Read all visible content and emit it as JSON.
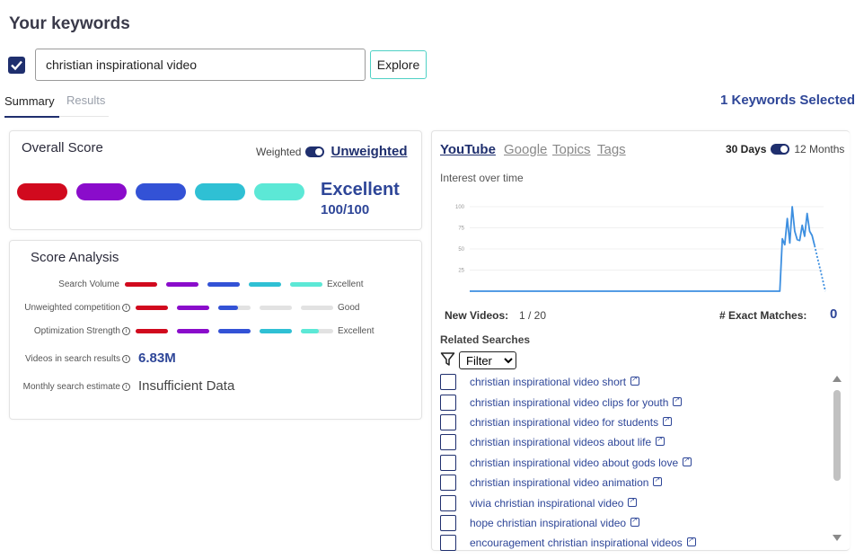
{
  "page": {
    "title": "Your keywords"
  },
  "keyword": {
    "value": "christian inspirational video",
    "checked": true,
    "explore_label": "Explore"
  },
  "tabs": [
    "Summary",
    "Results"
  ],
  "keywords_selected": "1 Keywords Selected",
  "overall": {
    "title": "Overall Score",
    "weighted_label": "Weighted",
    "unweighted_label": "Unweighted",
    "colors": [
      "#d10a1e",
      "#8a0ccb",
      "#3352d6",
      "#2fc0d4",
      "#5ce8d6"
    ],
    "rating": "Excellent",
    "score": "100/100"
  },
  "analysis": {
    "title": "Score Analysis",
    "rows": [
      {
        "label": "Search Volume",
        "info": false,
        "verdict": "Excellent",
        "fills": [
          1,
          1,
          1,
          1,
          1
        ]
      },
      {
        "label": "Unweighted competition",
        "info": true,
        "verdict": "Good",
        "fills": [
          1,
          1,
          0.6,
          0,
          0
        ]
      },
      {
        "label": "Optimization Strength",
        "info": true,
        "verdict": "Excellent",
        "fills": [
          1,
          1,
          1,
          1,
          0.55
        ]
      }
    ],
    "videos_label": "Videos in search results",
    "videos_value": "6.83M",
    "monthly_label": "Monthly search estimate",
    "monthly_value": "Insufficient Data"
  },
  "source_tabs": [
    "YouTube",
    "Google",
    "Topics",
    "Tags"
  ],
  "period": {
    "left": "30 Days",
    "right": "12 Months"
  },
  "chart_data": {
    "type": "line",
    "title": "Interest over time",
    "yticks": [
      25,
      50,
      75,
      100
    ],
    "ylim": [
      0,
      100
    ],
    "values": [
      0,
      0,
      0,
      0,
      0,
      0,
      0,
      0,
      0,
      0,
      0,
      0,
      0,
      0,
      0,
      0,
      0,
      0,
      0,
      0,
      0,
      0,
      0,
      0,
      0,
      0,
      0,
      0,
      0,
      0,
      0,
      0,
      0,
      0,
      0,
      0,
      0,
      0,
      0,
      0,
      0,
      0,
      0,
      0,
      0,
      0,
      0,
      0,
      0,
      0,
      0,
      0,
      0,
      0,
      0,
      0,
      0,
      0,
      0,
      0,
      0,
      0,
      0,
      0,
      0,
      0,
      0,
      0,
      0,
      0,
      0,
      0,
      0,
      0,
      0,
      0,
      0,
      0,
      0,
      0,
      0,
      0,
      0,
      0,
      0,
      0,
      0,
      0,
      0,
      0,
      0,
      0,
      0,
      0,
      0,
      0,
      0,
      0,
      0,
      0,
      0,
      0,
      0,
      0,
      0,
      0,
      0,
      0,
      0,
      0,
      0,
      0,
      0,
      0,
      0,
      0,
      0,
      0,
      0,
      0,
      0,
      0,
      0,
      0,
      0,
      0,
      62,
      55,
      86,
      57,
      100,
      71,
      61,
      60,
      78,
      65,
      92,
      71,
      66,
      54
    ],
    "dotted_tail": [
      54,
      0
    ],
    "color": "#3d8fe0"
  },
  "stats": {
    "new_videos_label": "New Videos:",
    "new_videos_value": "1 / 20",
    "exact_label": "# Exact Matches:",
    "exact_value": "0"
  },
  "related": {
    "title": "Related Searches",
    "filter_label": "Filter",
    "items": [
      "christian inspirational video short",
      "christian inspirational video clips for youth",
      "christian inspirational video for students",
      "christian inspirational videos about life",
      "christian inspirational video about gods love",
      "christian inspirational video animation",
      "vivia christian inspirational video",
      "hope christian inspirational video",
      "encouragement christian inspirational videos"
    ]
  }
}
